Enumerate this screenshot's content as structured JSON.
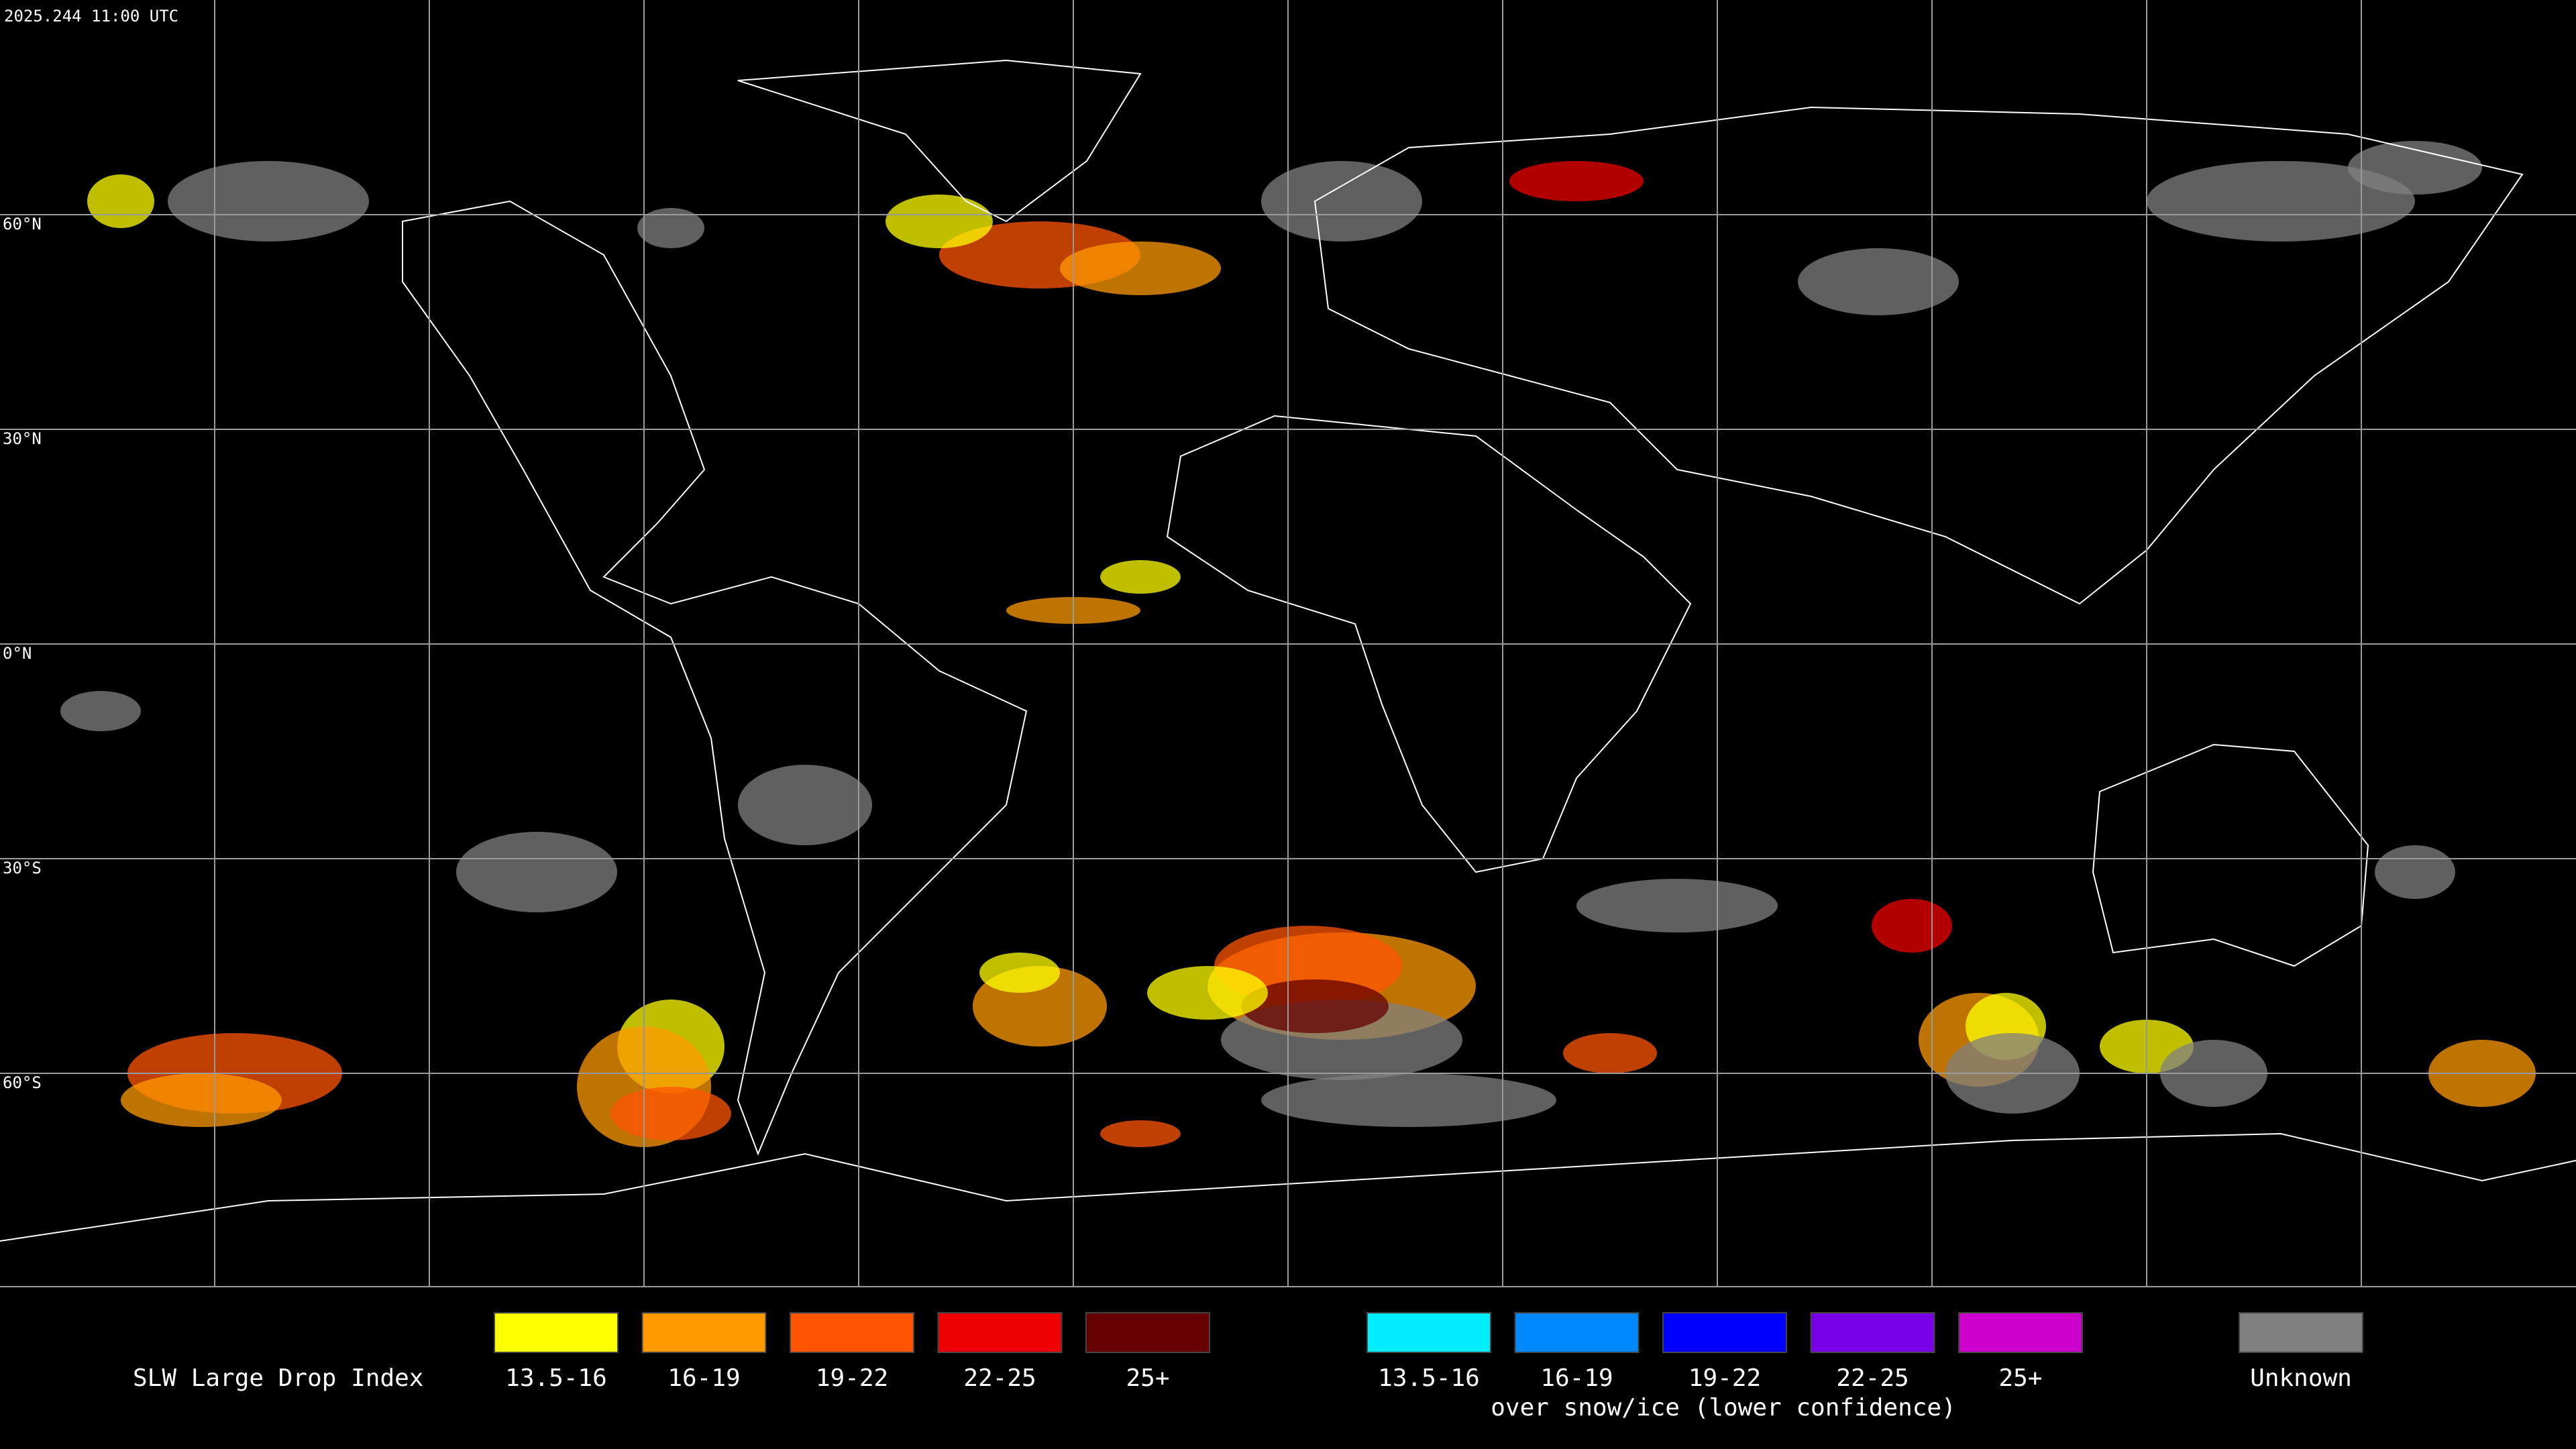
{
  "header": {
    "timestamp": "2025.244 11:00 UTC"
  },
  "map": {
    "lat_labels": [
      "60°N",
      "30°N",
      "0°N",
      "30°S",
      "60°S"
    ]
  },
  "legend": {
    "title": "SLW Large Drop Index",
    "groups": [
      {
        "items": [
          {
            "label": "13.5-16",
            "color": "#ffff00"
          },
          {
            "label": "16-19",
            "color": "#ff9a00"
          },
          {
            "label": "19-22",
            "color": "#ff5500"
          },
          {
            "label": "22-25",
            "color": "#ee0000"
          },
          {
            "label": "25+",
            "color": "#660000"
          }
        ]
      },
      {
        "items": [
          {
            "label": "13.5-16",
            "color": "#00eeff"
          },
          {
            "label": "16-19",
            "color": "#0088ff"
          },
          {
            "label": "19-22",
            "color": "#0000ff"
          },
          {
            "label": "22-25",
            "color": "#7a00e6"
          },
          {
            "label": "25+",
            "color": "#cc00cc"
          }
        ],
        "caption": "over snow/ice (lower confidence)"
      }
    ],
    "unknown": {
      "label": "Unknown",
      "color": "#808080"
    }
  }
}
